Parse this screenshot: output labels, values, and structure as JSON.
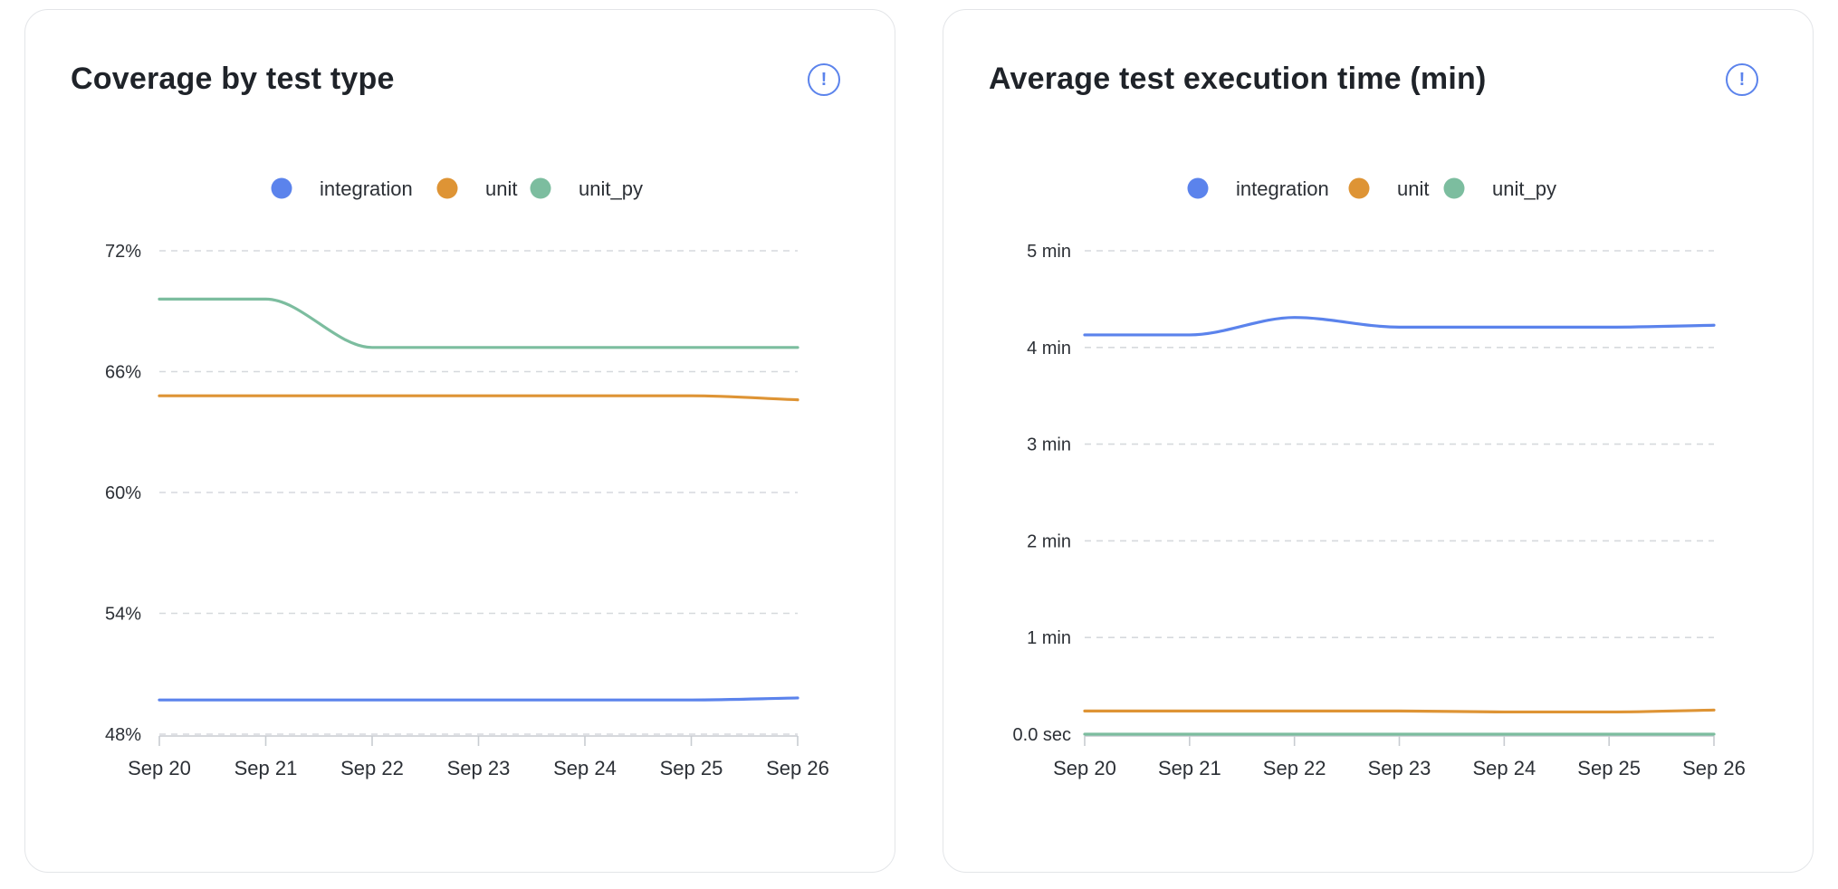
{
  "colors": {
    "integration": "#5b83ec",
    "unit": "#de9435",
    "unit_py": "#7cbd9f",
    "grid": "#d6d9dd",
    "axis": "#c8ccd1",
    "tick_text": "#2c3036",
    "legend_text": "#2c3036",
    "title": "#1f2329",
    "info_icon": "#5b83ec"
  },
  "cards": [
    {
      "title": "Coverage by test type",
      "info_icon": "!",
      "info_icon_name": "info-icon"
    },
    {
      "title": "Average test execution time (min)",
      "info_icon": "!",
      "info_icon_name": "info-icon"
    }
  ],
  "chart_data": [
    {
      "type": "line",
      "title": "Coverage by test type",
      "xlabel": "",
      "ylabel": "",
      "x": [
        "Sep 20",
        "Sep 21",
        "Sep 22",
        "Sep 23",
        "Sep 24",
        "Sep 25",
        "Sep 26"
      ],
      "ylim": [
        48,
        72
      ],
      "yticks": [
        48,
        54,
        60,
        66,
        72
      ],
      "ytick_labels": [
        "48%",
        "54%",
        "60%",
        "66%",
        "72%"
      ],
      "grid": true,
      "legend_placement": "top-center",
      "curve": "smooth",
      "series": [
        {
          "name": "integration",
          "color_key": "integration",
          "values": [
            49.7,
            49.7,
            49.7,
            49.7,
            49.7,
            49.7,
            49.8
          ]
        },
        {
          "name": "unit",
          "color_key": "unit",
          "values": [
            64.8,
            64.8,
            64.8,
            64.8,
            64.8,
            64.8,
            64.6
          ]
        },
        {
          "name": "unit_py",
          "color_key": "unit_py",
          "values": [
            69.6,
            69.6,
            67.2,
            67.2,
            67.2,
            67.2,
            67.2
          ]
        }
      ]
    },
    {
      "type": "line",
      "title": "Average test execution time (min)",
      "xlabel": "",
      "ylabel": "",
      "x": [
        "Sep 20",
        "Sep 21",
        "Sep 22",
        "Sep 23",
        "Sep 24",
        "Sep 25",
        "Sep 26"
      ],
      "ylim": [
        0,
        5
      ],
      "yticks": [
        0,
        1,
        2,
        3,
        4,
        5
      ],
      "ytick_labels": [
        "0.0 sec",
        "1 min",
        "2 min",
        "3 min",
        "4 min",
        "5 min"
      ],
      "grid": true,
      "legend_placement": "top-center",
      "curve": "smooth",
      "series": [
        {
          "name": "integration",
          "color_key": "integration",
          "values": [
            4.13,
            4.13,
            4.31,
            4.21,
            4.21,
            4.21,
            4.23
          ]
        },
        {
          "name": "unit",
          "color_key": "unit",
          "values": [
            0.24,
            0.24,
            0.24,
            0.24,
            0.23,
            0.23,
            0.25
          ]
        },
        {
          "name": "unit_py",
          "color_key": "unit_py",
          "values": [
            0.0,
            0.0,
            0.0,
            0.0,
            0.0,
            0.0,
            0.0
          ]
        }
      ]
    }
  ]
}
